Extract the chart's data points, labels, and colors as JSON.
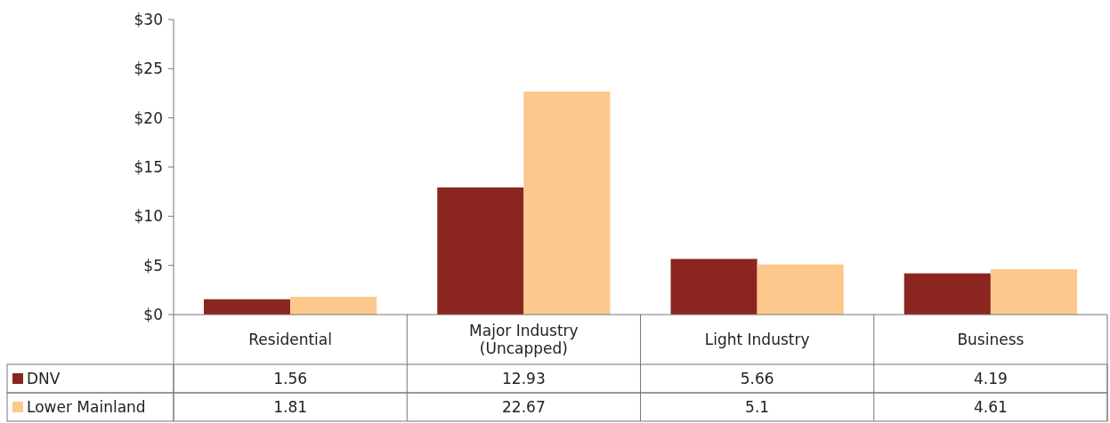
{
  "chart_data": {
    "type": "bar",
    "categories": [
      "Residential",
      "Major Industry\n(Uncapped)",
      "Light Industry",
      "Business"
    ],
    "series": [
      {
        "name": "DNV",
        "color": "#8b2520",
        "values": [
          1.56,
          12.93,
          5.66,
          4.19
        ]
      },
      {
        "name": "Lower Mainland",
        "color": "#fcc88c",
        "values": [
          1.81,
          22.67,
          5.1,
          4.61
        ]
      }
    ],
    "ylim": [
      0,
      30
    ],
    "yticks": [
      {
        "value": 0,
        "label": "$0"
      },
      {
        "value": 5,
        "label": "$5"
      },
      {
        "value": 10,
        "label": "$10"
      },
      {
        "value": 15,
        "label": "$15"
      },
      {
        "value": 20,
        "label": "$20"
      },
      {
        "value": 25,
        "label": "$25"
      },
      {
        "value": 30,
        "label": "$30"
      }
    ],
    "data_labels": true,
    "legend": "bottom"
  }
}
